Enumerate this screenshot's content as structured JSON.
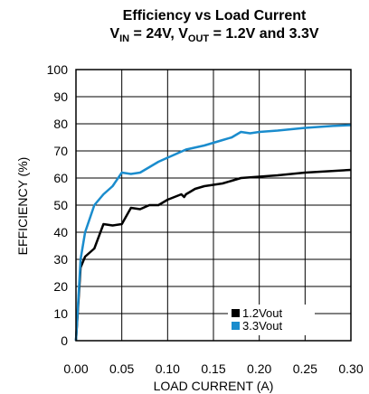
{
  "chart_data": {
    "type": "line",
    "title_line1": "Efficiency vs Load Current",
    "title_line2": {
      "v1": "V",
      "s1": "IN",
      "t1": " = 24V, V",
      "s2": "OUT",
      "t2": " = 1.2V and 3.3V"
    },
    "xlabel": "LOAD CURRENT (A)",
    "ylabel": "EFFICIENCY (%)",
    "xlim": [
      0,
      0.3
    ],
    "ylim": [
      0,
      100
    ],
    "x_ticks": [
      "0.00",
      "0.05",
      "0.10",
      "0.15",
      "0.20",
      "0.25",
      "0.30"
    ],
    "y_ticks": [
      "0",
      "10",
      "20",
      "30",
      "40",
      "50",
      "60",
      "70",
      "80",
      "90",
      "100"
    ],
    "grid": true,
    "legend_position": "bottom-right",
    "series": [
      {
        "name": "1.2Vout",
        "color": "#000000",
        "points": [
          [
            0,
            0
          ],
          [
            0.005,
            27
          ],
          [
            0.01,
            31
          ],
          [
            0.02,
            34
          ],
          [
            0.03,
            43
          ],
          [
            0.04,
            42.5
          ],
          [
            0.05,
            43
          ],
          [
            0.06,
            49
          ],
          [
            0.07,
            48.5
          ],
          [
            0.08,
            50
          ],
          [
            0.09,
            50
          ],
          [
            0.1,
            52
          ],
          [
            0.115,
            54
          ],
          [
            0.118,
            53
          ],
          [
            0.12,
            54
          ],
          [
            0.125,
            55
          ],
          [
            0.13,
            56
          ],
          [
            0.14,
            57
          ],
          [
            0.15,
            57.5
          ],
          [
            0.16,
            58
          ],
          [
            0.17,
            59
          ],
          [
            0.18,
            60
          ],
          [
            0.2,
            60.5
          ],
          [
            0.22,
            61
          ],
          [
            0.25,
            62
          ],
          [
            0.3,
            63
          ]
        ]
      },
      {
        "name": "3.3Vout",
        "color": "#1a8ccd",
        "points": [
          [
            0,
            0
          ],
          [
            0.005,
            30
          ],
          [
            0.01,
            40
          ],
          [
            0.02,
            50
          ],
          [
            0.03,
            54
          ],
          [
            0.04,
            57
          ],
          [
            0.05,
            62
          ],
          [
            0.06,
            61.5
          ],
          [
            0.07,
            62
          ],
          [
            0.08,
            64
          ],
          [
            0.09,
            66
          ],
          [
            0.1,
            67.5
          ],
          [
            0.11,
            69
          ],
          [
            0.12,
            70.5
          ],
          [
            0.14,
            72
          ],
          [
            0.16,
            74
          ],
          [
            0.17,
            75
          ],
          [
            0.18,
            77
          ],
          [
            0.19,
            76.5
          ],
          [
            0.2,
            77
          ],
          [
            0.22,
            77.5
          ],
          [
            0.25,
            78.5
          ],
          [
            0.28,
            79.2
          ],
          [
            0.3,
            79.5
          ]
        ]
      }
    ]
  }
}
